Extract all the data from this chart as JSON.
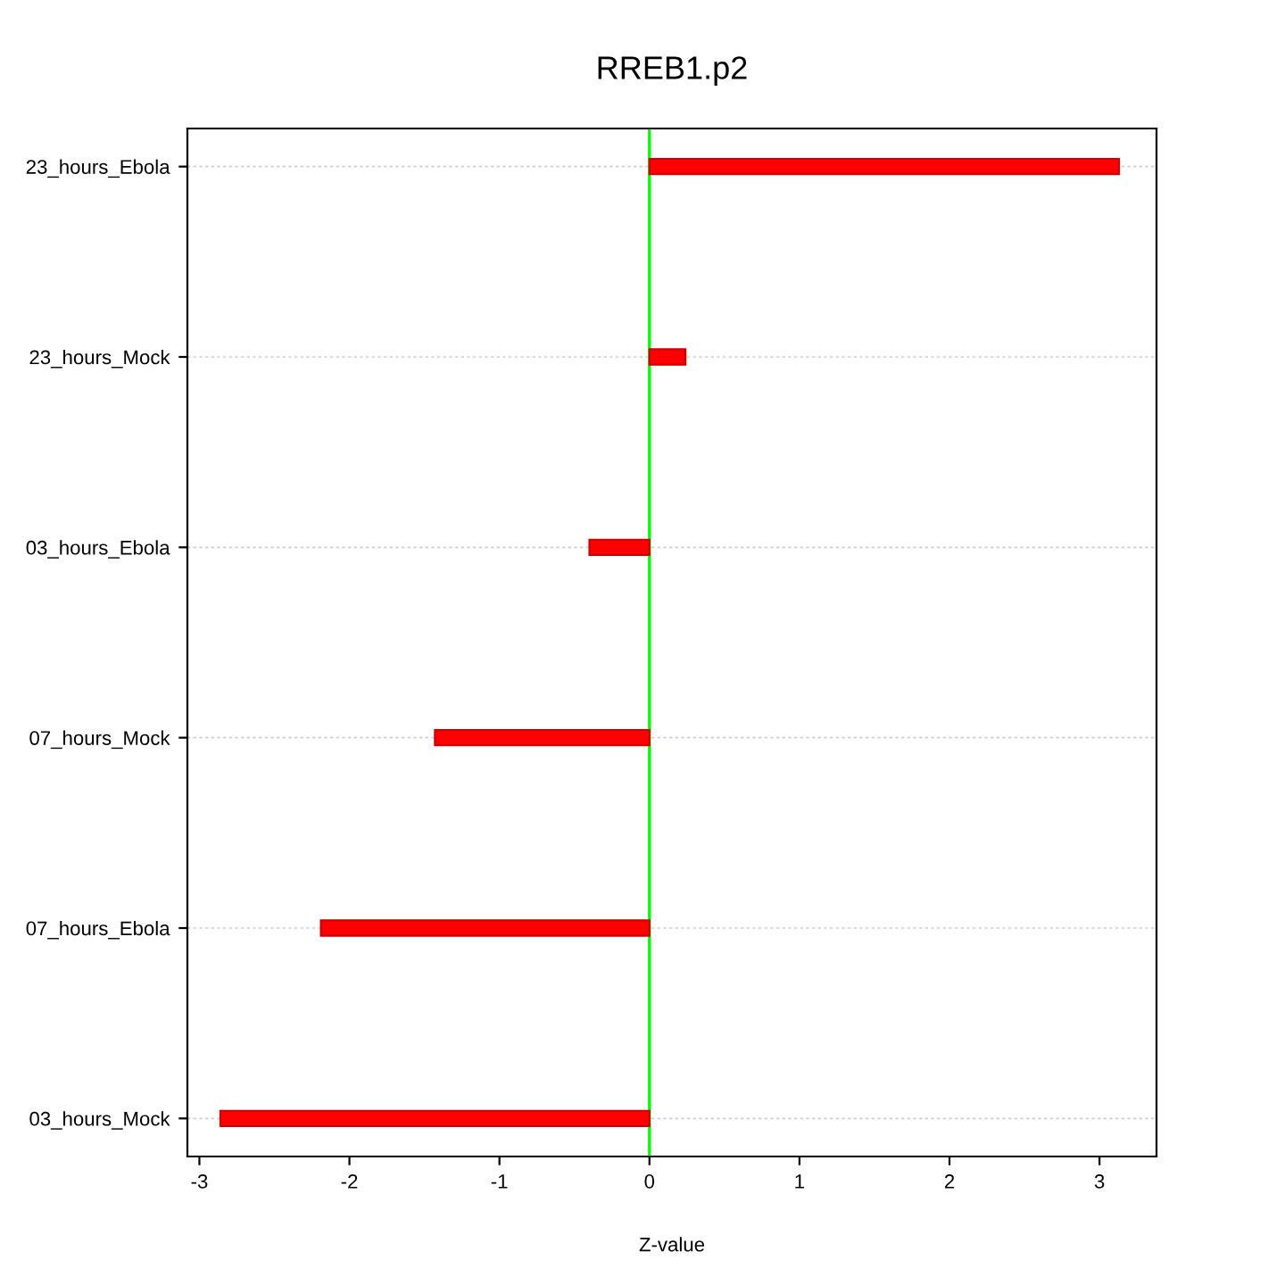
{
  "chart_data": {
    "type": "bar",
    "orientation": "horizontal",
    "title": "RREB1.p2",
    "xlabel": "Z-value",
    "categories": [
      "23_hours_Ebola",
      "23_hours_Mock",
      "03_hours_Ebola",
      "07_hours_Mock",
      "07_hours_Ebola",
      "03_hours_Mock"
    ],
    "values": [
      3.13,
      0.24,
      -0.4,
      -1.43,
      -2.19,
      -2.86
    ],
    "color": "#ff0000",
    "xlim": [
      -3.08,
      3.38
    ],
    "xticks": [
      -3,
      -2,
      -1,
      0,
      1,
      2,
      3
    ],
    "grid": "y",
    "ref_lines": [
      {
        "axis": "x",
        "value": 0,
        "color": "#00ff00"
      }
    ]
  }
}
